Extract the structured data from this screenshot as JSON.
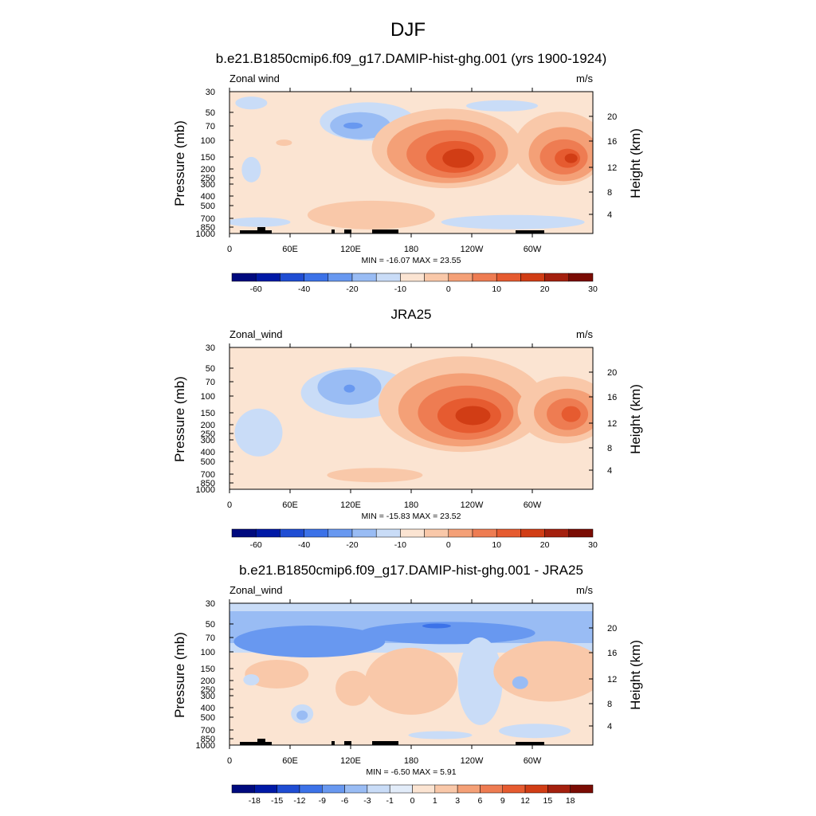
{
  "figure": {
    "title": "DJF"
  },
  "height_ticks": [
    "20",
    "16",
    "12",
    "8",
    "4"
  ],
  "chart_data": [
    {
      "type": "heatmap",
      "title": "b.e21.B1850cmip6.f09_g17.DAMIP-hist-ghg.001 (yrs 1900-1924)",
      "left_label": "Zonal wind",
      "units": "m/s",
      "ylabel": "Pressure (mb)",
      "ylabel_right": "Height (km)",
      "x_ticks": [
        "0",
        "60E",
        "120E",
        "180",
        "120W",
        "60W"
      ],
      "y_ticks": [
        "30",
        "50",
        "70",
        "100",
        "150",
        "200",
        "250",
        "300",
        "400",
        "500",
        "700",
        "850",
        "1000"
      ],
      "min_max_label": "MIN = -16.07  MAX =  23.55",
      "colorbar": [
        "-60",
        "-40",
        "-20",
        "-10",
        "0",
        "10",
        "20",
        "30"
      ],
      "colorbar_colors": [
        "#000a7e",
        "#0019a6",
        "#1f4dd3",
        "#3c72e8",
        "#6898f0",
        "#99bcf4",
        "#c9dcf7",
        "#fbe4d2",
        "#f9c8a9",
        "#f4a077",
        "#ee7c52",
        "#e65b30",
        "#d13d15",
        "#a4200e",
        "#7a0c04"
      ],
      "has_terrain": true,
      "pattern": "model"
    },
    {
      "type": "heatmap",
      "title": "JRA25",
      "left_label": "Zonal_wind",
      "units": "m/s",
      "ylabel": "Pressure (mb)",
      "ylabel_right": "Height (km)",
      "x_ticks": [
        "0",
        "60E",
        "120E",
        "180",
        "120W",
        "60W"
      ],
      "y_ticks": [
        "30",
        "50",
        "70",
        "100",
        "150",
        "200",
        "250",
        "300",
        "400",
        "500",
        "700",
        "850",
        "1000"
      ],
      "min_max_label": "MIN = -15.83  MAX =  23.52",
      "colorbar": [
        "-60",
        "-40",
        "-20",
        "-10",
        "0",
        "10",
        "20",
        "30"
      ],
      "colorbar_colors": [
        "#000a7e",
        "#0019a6",
        "#1f4dd3",
        "#3c72e8",
        "#6898f0",
        "#99bcf4",
        "#c9dcf7",
        "#fbe4d2",
        "#f9c8a9",
        "#f4a077",
        "#ee7c52",
        "#e65b30",
        "#d13d15",
        "#a4200e",
        "#7a0c04"
      ],
      "has_terrain": false,
      "pattern": "obs"
    },
    {
      "type": "heatmap",
      "title": "b.e21.B1850cmip6.f09_g17.DAMIP-hist-ghg.001 - JRA25",
      "left_label": "Zonal_wind",
      "units": "m/s",
      "ylabel": "Pressure (mb)",
      "ylabel_right": "Height (km)",
      "x_ticks": [
        "0",
        "60E",
        "120E",
        "180",
        "120W",
        "60W"
      ],
      "y_ticks": [
        "30",
        "50",
        "70",
        "100",
        "150",
        "200",
        "250",
        "300",
        "400",
        "500",
        "700",
        "850",
        "1000"
      ],
      "min_max_label": "MIN =  -6.50  MAX =   5.91",
      "colorbar": [
        "-18",
        "-15",
        "-12",
        "-9",
        "-6",
        "-3",
        "-1",
        "0",
        "1",
        "3",
        "6",
        "9",
        "12",
        "15",
        "18"
      ],
      "colorbar_colors": [
        "#000a7e",
        "#0019a6",
        "#1f4dd3",
        "#3c72e8",
        "#6898f0",
        "#99bcf4",
        "#c9dcf7",
        "#e2ecf9",
        "#fbe4d2",
        "#f9c8a9",
        "#f4a077",
        "#ee7c52",
        "#e65b30",
        "#d13d15",
        "#a4200e",
        "#7a0c04"
      ],
      "has_terrain": true,
      "pattern": "diff"
    }
  ]
}
